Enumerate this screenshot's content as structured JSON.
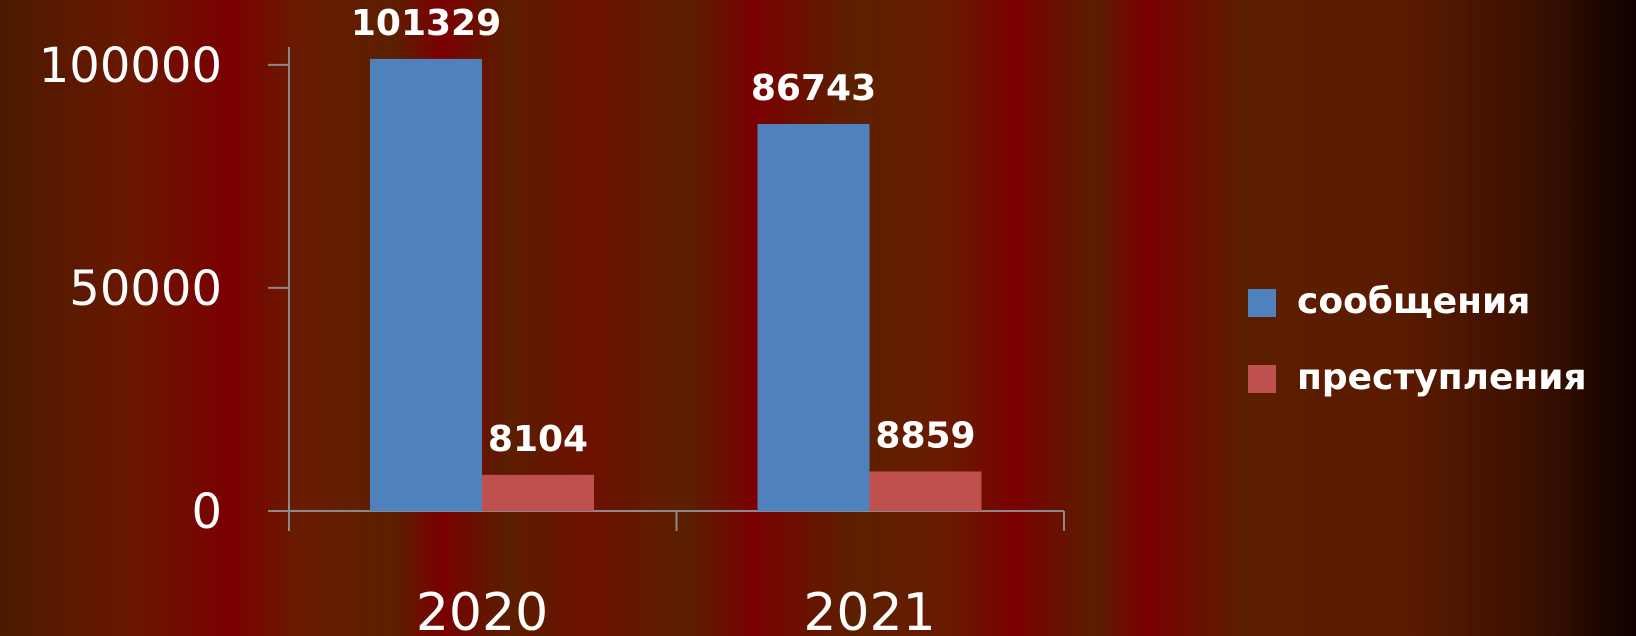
{
  "chart_data": {
    "type": "bar",
    "categories": [
      "2020",
      "2021"
    ],
    "series": [
      {
        "name": "сообщения",
        "color": "#4f81bd",
        "values": [
          101329,
          86743
        ]
      },
      {
        "name": "преступления",
        "color": "#c0504d",
        "values": [
          8104,
          8859
        ]
      }
    ],
    "ylim": [
      0,
      104000
    ],
    "yticks": [
      0,
      50000,
      100000
    ],
    "legend": "right"
  }
}
